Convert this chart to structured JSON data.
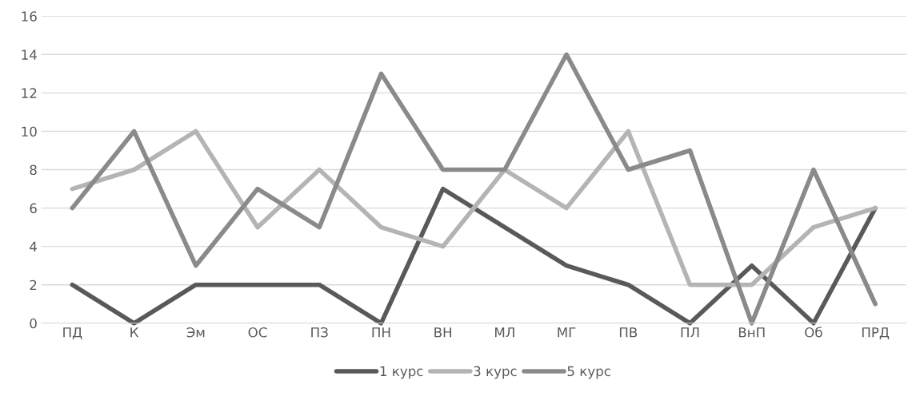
{
  "chart_data": {
    "type": "line",
    "categories": [
      "ПД",
      "К",
      "Эм",
      "ОС",
      "ПЗ",
      "ПН",
      "ВН",
      "МЛ",
      "МГ",
      "ПВ",
      "ПЛ",
      "ВнП",
      "Об",
      "ПРД"
    ],
    "series": [
      {
        "name": "1 курс",
        "color": "#595959",
        "values": [
          2,
          0,
          2,
          2,
          2,
          0,
          7,
          5,
          3,
          2,
          0,
          3,
          0,
          6
        ]
      },
      {
        "name": "3 курс",
        "color": "#b4b4b4",
        "values": [
          7,
          8,
          10,
          5,
          8,
          5,
          4,
          8,
          6,
          10,
          2,
          2,
          5,
          6
        ]
      },
      {
        "name": "5 курс",
        "color": "#8a8a8a",
        "values": [
          6,
          10,
          3,
          7,
          5,
          13,
          8,
          8,
          14,
          8,
          9,
          0,
          8,
          1
        ]
      }
    ],
    "ylim": [
      0,
      16
    ],
    "yticks": [
      0,
      2,
      4,
      6,
      8,
      10,
      12,
      14,
      16
    ],
    "grid": "y",
    "legend": "bottom",
    "marker": "none",
    "line_style": "solid"
  }
}
